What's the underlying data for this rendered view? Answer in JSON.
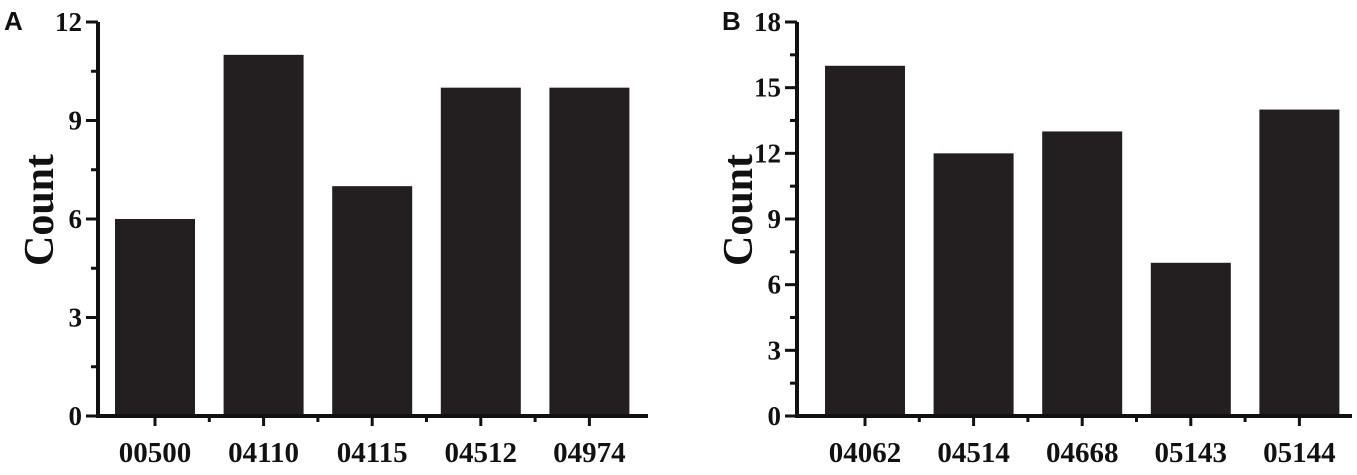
{
  "chart_data": [
    {
      "type": "bar",
      "panel_label": "A",
      "categories": [
        "00500",
        "04110",
        "04115",
        "04512",
        "04974"
      ],
      "values": [
        6,
        11,
        7,
        10,
        10
      ],
      "ylabel": "Count",
      "xlabel": "",
      "ylim": [
        0,
        12
      ],
      "yticks": [
        "0",
        "3",
        "6",
        "9",
        "12"
      ],
      "bar_color": "#231f20",
      "grid": false
    },
    {
      "type": "bar",
      "panel_label": "B",
      "categories": [
        "04062",
        "04514",
        "04668",
        "05143",
        "05144"
      ],
      "values": [
        16,
        12,
        13,
        7,
        14
      ],
      "ylabel": "Count",
      "xlabel": "",
      "ylim": [
        0,
        18
      ],
      "yticks": [
        "0",
        "3",
        "6",
        "9",
        "12",
        "15",
        "18"
      ],
      "bar_color": "#231f20",
      "grid": false
    }
  ]
}
